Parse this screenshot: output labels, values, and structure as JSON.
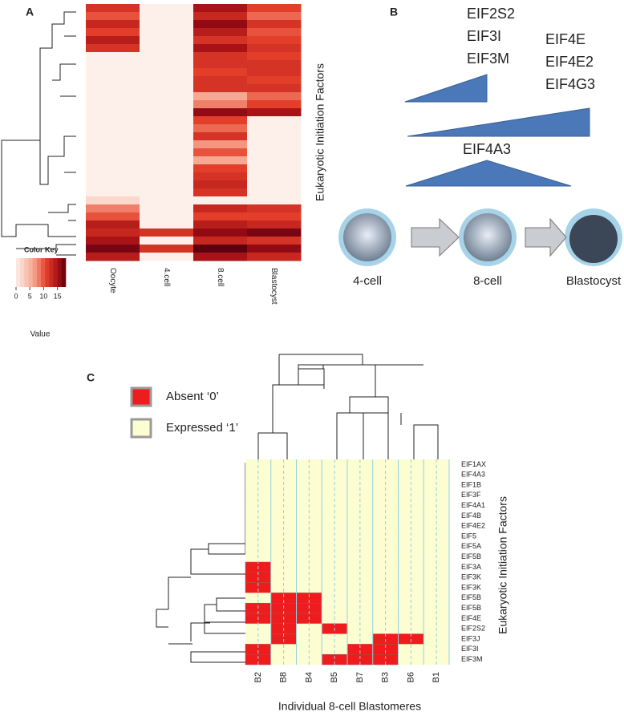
{
  "panel_a": {
    "label": "A",
    "type": "heatmap",
    "columns": [
      "Oocyte",
      "4.cell",
      "8.cell",
      "Blastocyst"
    ],
    "y_label": "Eukaryotic Initiation Factors",
    "values": [
      [
        12,
        0,
        15,
        11
      ],
      [
        10,
        0,
        13,
        9
      ],
      [
        13,
        0,
        16,
        12
      ],
      [
        11,
        0,
        14,
        10
      ],
      [
        14,
        0,
        12,
        11
      ],
      [
        12,
        0,
        15,
        12
      ],
      [
        0,
        0,
        12,
        11
      ],
      [
        0,
        0,
        12,
        12
      ],
      [
        0,
        0,
        11,
        12
      ],
      [
        0,
        0,
        12,
        11
      ],
      [
        0,
        0,
        12,
        12
      ],
      [
        0,
        0,
        6,
        9
      ],
      [
        0,
        0,
        8,
        11
      ],
      [
        0,
        0,
        16,
        15
      ],
      [
        0,
        0,
        11,
        0
      ],
      [
        0,
        0,
        9,
        0
      ],
      [
        0,
        0,
        12,
        0
      ],
      [
        0,
        0,
        7,
        0
      ],
      [
        0,
        0,
        10,
        0
      ],
      [
        0,
        0,
        6,
        0
      ],
      [
        0,
        0,
        11,
        0
      ],
      [
        0,
        0,
        12,
        0
      ],
      [
        0,
        0,
        13,
        0
      ],
      [
        0,
        0,
        12,
        0
      ],
      [
        2,
        0,
        0,
        0
      ],
      [
        8,
        0,
        13,
        12
      ],
      [
        10,
        0,
        11,
        11
      ],
      [
        14,
        0,
        14,
        13
      ],
      [
        13,
        12,
        16,
        17
      ],
      [
        15,
        0,
        13,
        12
      ],
      [
        17,
        12,
        18,
        16
      ],
      [
        14,
        0,
        15,
        13
      ]
    ],
    "color_key": {
      "title": "Color Key",
      "range": [
        0,
        18
      ],
      "ticks": [
        0,
        5,
        10,
        15
      ],
      "x_label": "Value"
    }
  },
  "panel_b": {
    "label": "B",
    "factor_groups": [
      [
        "EIF2S2",
        "EIF3I",
        "EIF3M"
      ],
      [
        "EIF4E",
        "EIF4E2",
        "EIF4G3"
      ],
      [
        "EIF4A3"
      ]
    ],
    "stages": [
      "4-cell",
      "8-cell",
      "Blastocyst"
    ]
  },
  "panel_c": {
    "label": "C",
    "type": "heatmap",
    "legend": [
      {
        "name": "Absent ‘0’",
        "color": "#ee1c1c"
      },
      {
        "name": "Expressed ‘1’",
        "color": "#fdfdd2"
      }
    ],
    "columns": [
      "B2",
      "B8",
      "B4",
      "B5",
      "B7",
      "B3",
      "B6",
      "B1"
    ],
    "rows": [
      "EIF1AX",
      "EIF4A3",
      "EIF1B",
      "EIF3F",
      "EIF4A1",
      "EIF4B",
      "EIF4E2",
      "EIF5",
      "EIF5A",
      "EIF5B",
      "EIF3A",
      "EIF3K",
      "EIF3K",
      "EIF5B",
      "EIF5B",
      "EIF4E",
      "EIF2S2",
      "EIF3J",
      "EIF3I",
      "EIF3M"
    ],
    "values": [
      [
        1,
        1,
        1,
        1,
        1,
        1,
        1,
        1
      ],
      [
        1,
        1,
        1,
        1,
        1,
        1,
        1,
        1
      ],
      [
        1,
        1,
        1,
        1,
        1,
        1,
        1,
        1
      ],
      [
        1,
        1,
        1,
        1,
        1,
        1,
        1,
        1
      ],
      [
        1,
        1,
        1,
        1,
        1,
        1,
        1,
        1
      ],
      [
        1,
        1,
        1,
        1,
        1,
        1,
        1,
        1
      ],
      [
        1,
        1,
        1,
        1,
        1,
        1,
        1,
        1
      ],
      [
        1,
        1,
        1,
        1,
        1,
        1,
        1,
        1
      ],
      [
        1,
        1,
        1,
        1,
        1,
        1,
        1,
        1
      ],
      [
        1,
        1,
        1,
        1,
        1,
        1,
        1,
        1
      ],
      [
        0,
        1,
        1,
        1,
        1,
        1,
        1,
        1
      ],
      [
        0,
        1,
        1,
        1,
        1,
        1,
        1,
        1
      ],
      [
        0,
        1,
        1,
        1,
        1,
        1,
        1,
        1
      ],
      [
        1,
        0,
        0,
        1,
        1,
        1,
        1,
        1
      ],
      [
        0,
        0,
        0,
        1,
        1,
        1,
        1,
        1
      ],
      [
        0,
        0,
        0,
        1,
        1,
        1,
        1,
        1
      ],
      [
        1,
        0,
        1,
        0,
        1,
        1,
        1,
        1
      ],
      [
        1,
        0,
        1,
        1,
        1,
        0,
        0,
        1
      ],
      [
        0,
        1,
        1,
        1,
        0,
        0,
        1,
        1
      ],
      [
        0,
        1,
        1,
        0,
        0,
        0,
        1,
        1
      ]
    ],
    "y_label": "Eukaryotic Initiation Factors",
    "x_label": "Individual 8-cell Blastomeres"
  }
}
